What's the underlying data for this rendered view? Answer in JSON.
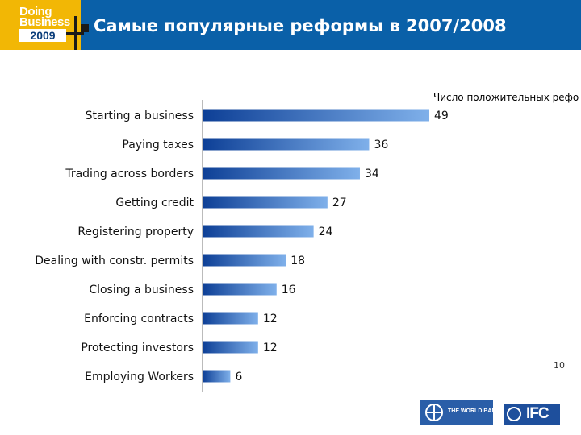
{
  "header": {
    "logo": {
      "line1": "Doing",
      "line2": "Business",
      "year": "2009"
    },
    "title": "Самые популярные реформы в 2007/2008"
  },
  "colors": {
    "header_bg": "#0a60a8",
    "logo_bg": "#f2b705",
    "bar_dark": "#0d3f96",
    "bar_light": "#7fb0ea"
  },
  "chart_data": {
    "type": "bar",
    "orientation": "horizontal",
    "title": "",
    "subtitle": "Число положительных рефо",
    "categories": [
      "Starting a business",
      "Paying taxes",
      "Trading across borders",
      "Getting credit",
      "Registering property",
      "Dealing with constr. permits",
      "Closing a business",
      "Enforcing contracts",
      "Protecting investors",
      "Employing Workers"
    ],
    "values": [
      49,
      36,
      34,
      27,
      24,
      18,
      16,
      12,
      12,
      6
    ],
    "xlim": [
      0,
      50
    ],
    "grid": false,
    "data_labels": true
  },
  "footer": {
    "page_number": "10",
    "world_bank_text": "THE WORLD BANK",
    "ifc_text": "IFC"
  }
}
